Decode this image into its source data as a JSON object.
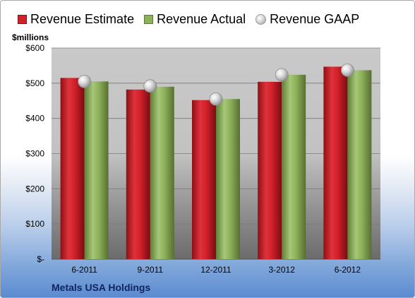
{
  "chart_data": {
    "type": "bar",
    "title": "",
    "units_label": "$millions",
    "company": "Metals USA Holdings",
    "categories": [
      "6-2011",
      "9-2011",
      "12-2011",
      "3-2012",
      "6-2012"
    ],
    "series": [
      {
        "name": "Revenue Estimate",
        "type": "bar",
        "color": "#d0202a",
        "values": [
          515,
          482,
          452,
          504,
          547
        ]
      },
      {
        "name": "Revenue Actual",
        "type": "bar",
        "color": "#8db05a",
        "values": [
          505,
          490,
          455,
          524,
          537
        ]
      },
      {
        "name": "Revenue GAAP",
        "type": "marker",
        "color": "#c0c0c0",
        "values": [
          505,
          492,
          455,
          524,
          537
        ]
      }
    ],
    "ylim": [
      0,
      600
    ],
    "yticks": [
      0,
      100,
      200,
      300,
      400,
      500,
      600
    ],
    "ytick_labels": [
      "$-",
      "$100",
      "$200",
      "$300",
      "$400",
      "$500",
      "$600"
    ],
    "grid": true,
    "legend_position": "top"
  }
}
